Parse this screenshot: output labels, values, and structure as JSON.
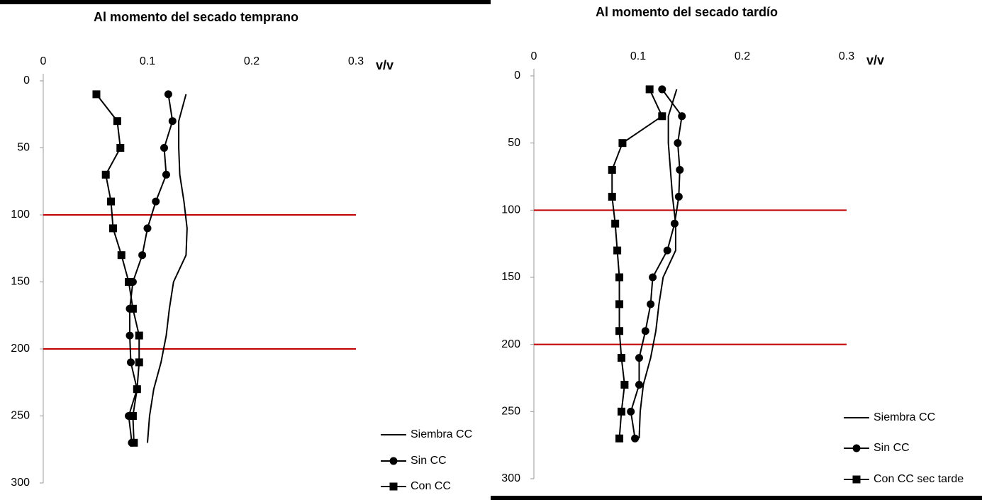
{
  "chart_data": [
    {
      "type": "line",
      "title": "Al momento del secado temprano",
      "x_label": "v/v",
      "depths": [
        10,
        30,
        50,
        70,
        90,
        110,
        130,
        150,
        170,
        190,
        210,
        230,
        250,
        270
      ],
      "xlim": [
        0,
        0.3
      ],
      "xticks": [
        0,
        0.1,
        0.2,
        0.3
      ],
      "ylim": [
        0,
        300
      ],
      "yticks": [
        0,
        50,
        100,
        150,
        200,
        250,
        300
      ],
      "reference_lines": {
        "values": [
          100,
          200
        ],
        "color": "#c00000"
      },
      "legend": "right",
      "series": [
        {
          "name": "Siembra CC",
          "color": "#000000",
          "marker": "none",
          "values": [
            0.137,
            0.13,
            0.13,
            0.131,
            0.135,
            0.138,
            0.137,
            0.125,
            0.121,
            0.118,
            0.113,
            0.106,
            0.102,
            0.1
          ]
        },
        {
          "name": "Sin CC",
          "color": "#000000",
          "marker": "circle",
          "values": [
            0.12,
            0.124,
            0.116,
            0.118,
            0.108,
            0.1,
            0.095,
            0.086,
            0.083,
            0.083,
            0.084,
            0.09,
            0.082,
            0.085
          ]
        },
        {
          "name": "Con CC",
          "color": "#000000",
          "marker": "square",
          "values": [
            0.051,
            0.071,
            0.074,
            0.06,
            0.065,
            0.067,
            0.075,
            0.082,
            0.086,
            0.092,
            0.092,
            0.09,
            0.086,
            0.087
          ]
        }
      ]
    },
    {
      "type": "line",
      "title": "Al momento del secado tardío",
      "x_label": "v/v",
      "depths": [
        10,
        30,
        50,
        70,
        90,
        110,
        130,
        150,
        170,
        190,
        210,
        230,
        250,
        270
      ],
      "xlim": [
        0,
        0.3
      ],
      "xticks": [
        0,
        0.1,
        0.2,
        0.3
      ],
      "ylim": [
        0,
        300
      ],
      "yticks": [
        0,
        50,
        100,
        150,
        200,
        250,
        300
      ],
      "reference_lines": {
        "values": [
          100,
          200
        ],
        "color": "#c00000"
      },
      "legend": "right",
      "series": [
        {
          "name": "Siembra CC",
          "color": "#000000",
          "marker": "none",
          "values": [
            0.137,
            0.129,
            0.129,
            0.131,
            0.133,
            0.136,
            0.136,
            0.124,
            0.12,
            0.117,
            0.112,
            0.105,
            0.102,
            0.101
          ]
        },
        {
          "name": "Sin CC",
          "color": "#000000",
          "marker": "circle",
          "values": [
            0.123,
            0.142,
            0.138,
            0.14,
            0.139,
            0.135,
            0.128,
            0.114,
            0.112,
            0.107,
            0.101,
            0.101,
            0.093,
            0.097
          ]
        },
        {
          "name": "Con CC sec tarde",
          "color": "#000000",
          "marker": "square",
          "values": [
            0.111,
            0.123,
            0.085,
            0.075,
            0.075,
            0.078,
            0.08,
            0.082,
            0.082,
            0.082,
            0.084,
            0.087,
            0.084,
            0.082
          ]
        }
      ]
    }
  ]
}
